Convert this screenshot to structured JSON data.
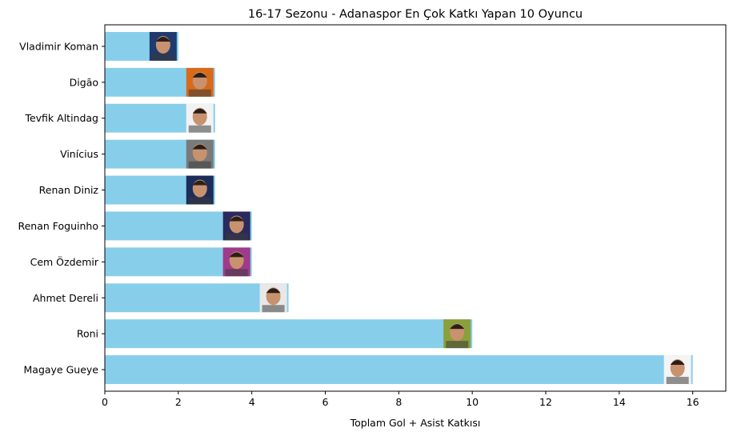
{
  "chart_data": {
    "type": "bar",
    "orientation": "horizontal",
    "title": "16-17 Sezonu - Adanaspor En Çok Katkı Yapan 10 Oyuncu",
    "xlabel": "Toplam Gol + Asist Katkısı",
    "ylabel": "",
    "categories": [
      "Vladimir Koman",
      "Digão",
      "Tevfik Altindag",
      "Vinícius",
      "Renan Diniz",
      "Renan Foguinho",
      "Cem Özdemir",
      "Ahmet Dereli",
      "Roni",
      "Magaye Gueye"
    ],
    "values": [
      2,
      3,
      3,
      3,
      3,
      4,
      4,
      5,
      10,
      16
    ],
    "xlim": [
      0,
      16.9
    ],
    "xticks": [
      "0",
      "2",
      "4",
      "6",
      "8",
      "10",
      "12",
      "14",
      "16"
    ],
    "bar_color": "#87ceeb",
    "grid": false,
    "legend": "none",
    "player_photo_colors": [
      "#1f3a6e",
      "#d96a1a",
      "#f2f2f2",
      "#7a7a7a",
      "#1d2d5a",
      "#2a2a5e",
      "#a03a8a",
      "#e8e8e8",
      "#8aa03a",
      "#f4f4f4"
    ]
  }
}
